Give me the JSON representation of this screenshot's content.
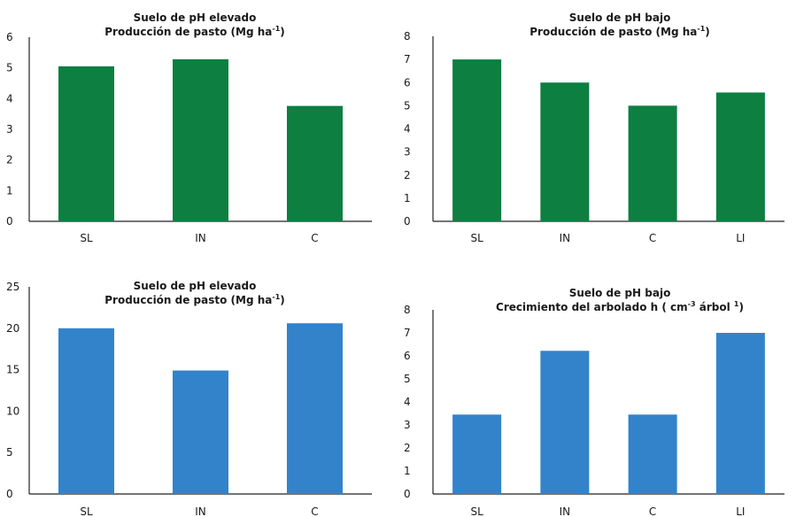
{
  "colors": {
    "green": "#0c7f41",
    "blue": "#3383cb",
    "axis": "#222222",
    "text": "#1a1a1a"
  },
  "chart_data": [
    {
      "type": "bar",
      "title_line1": "Suelo de pH elevado",
      "title_line2": "Producción de pasto (Mg ha",
      "title_sup": "-1",
      "title_end": ")",
      "categories": [
        "SL",
        "IN",
        "C"
      ],
      "values": [
        5.05,
        5.28,
        3.76
      ],
      "ylim": [
        0,
        6
      ],
      "yticks": [
        0,
        1,
        2,
        3,
        4,
        5,
        6
      ],
      "color": "#0c7f41",
      "grid": false
    },
    {
      "type": "bar",
      "title_line1": "Suelo de pH bajo",
      "title_line2": "Producción de pasto (Mg ha",
      "title_sup": "-1",
      "title_end": ")",
      "categories": [
        "SL",
        "IN",
        "C",
        "LI"
      ],
      "values": [
        7.0,
        6.0,
        5.0,
        5.57
      ],
      "ylim": [
        0,
        8
      ],
      "yticks": [
        0,
        1,
        2,
        3,
        4,
        5,
        6,
        7,
        8
      ],
      "color": "#0c7f41",
      "grid": false
    },
    {
      "type": "bar",
      "title_line1": "Suelo de pH elevado",
      "title_line2": "Producción de pasto (Mg ha",
      "title_sup": "-1",
      "title_end": ")",
      "categories": [
        "SL",
        "IN",
        "C"
      ],
      "values": [
        20.0,
        14.9,
        20.6
      ],
      "ylim": [
        0,
        25
      ],
      "yticks": [
        0,
        5,
        10,
        15,
        20,
        25
      ],
      "color": "#3383cb",
      "grid": false
    },
    {
      "type": "bar",
      "title_line1": "Suelo de pH bajo",
      "title_line2": "Crecimiento del arbolado h ( cm",
      "title_sup": "-3",
      "title_end": " árbol ",
      "title_sup2": "1",
      "title_end2": ")",
      "categories": [
        "SL",
        "IN",
        "C",
        "LI"
      ],
      "values": [
        3.45,
        6.22,
        3.45,
        7.0
      ],
      "ylim": [
        0,
        8
      ],
      "yticks": [
        0,
        1,
        2,
        3,
        4,
        5,
        6,
        7,
        8
      ],
      "color": "#3383cb",
      "grid": false
    }
  ]
}
